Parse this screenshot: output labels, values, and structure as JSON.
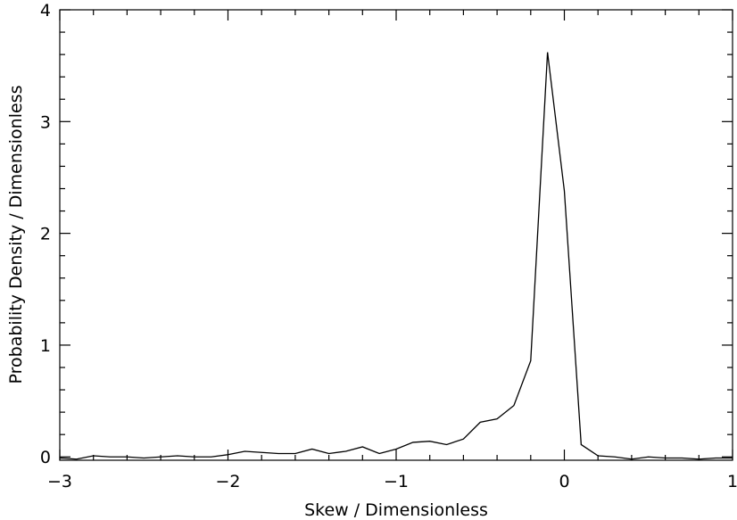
{
  "chart_data": {
    "type": "line",
    "xlabel": "Skew / Dimensionless",
    "ylabel": "Probability Density / Dimensionless",
    "xlim": [
      -3,
      1
    ],
    "ylim": [
      -0.03,
      4
    ],
    "grid": false,
    "x_ticks": [
      -3,
      -2,
      -1,
      0,
      1
    ],
    "x_tick_labels": [
      "−3",
      "−2",
      "−1",
      "0",
      "1"
    ],
    "y_ticks": [
      0,
      1,
      2,
      3,
      4
    ],
    "y_tick_labels": [
      "0",
      "1",
      "2",
      "3",
      "4"
    ],
    "x_minor_step": 0.2,
    "y_minor_step": 0.2,
    "series": [
      {
        "x": [
          -3.0,
          -2.9,
          -2.8,
          -2.7,
          -2.6,
          -2.5,
          -2.4,
          -2.3,
          -2.2,
          -2.1,
          -2.0,
          -1.9,
          -1.8,
          -1.7,
          -1.6,
          -1.5,
          -1.4,
          -1.3,
          -1.2,
          -1.1,
          -1.0,
          -0.9,
          -0.8,
          -0.7,
          -0.6,
          -0.5,
          -0.4,
          -0.3,
          -0.2,
          -0.1,
          0.0,
          0.1,
          0.2,
          0.3,
          0.4,
          0.5,
          0.6,
          0.7,
          0.8,
          0.9,
          1.0
        ],
        "y": [
          -0.01,
          -0.02,
          0.01,
          0.0,
          0.0,
          -0.01,
          0.0,
          0.01,
          0.0,
          0.0,
          0.02,
          0.05,
          0.04,
          0.03,
          0.03,
          0.07,
          0.03,
          0.05,
          0.09,
          0.03,
          0.07,
          0.13,
          0.14,
          0.11,
          0.16,
          0.31,
          0.34,
          0.46,
          0.86,
          3.62,
          2.38,
          0.11,
          0.01,
          0.0,
          -0.02,
          0.0,
          -0.01,
          -0.01,
          -0.02,
          -0.01,
          -0.01
        ]
      }
    ]
  }
}
